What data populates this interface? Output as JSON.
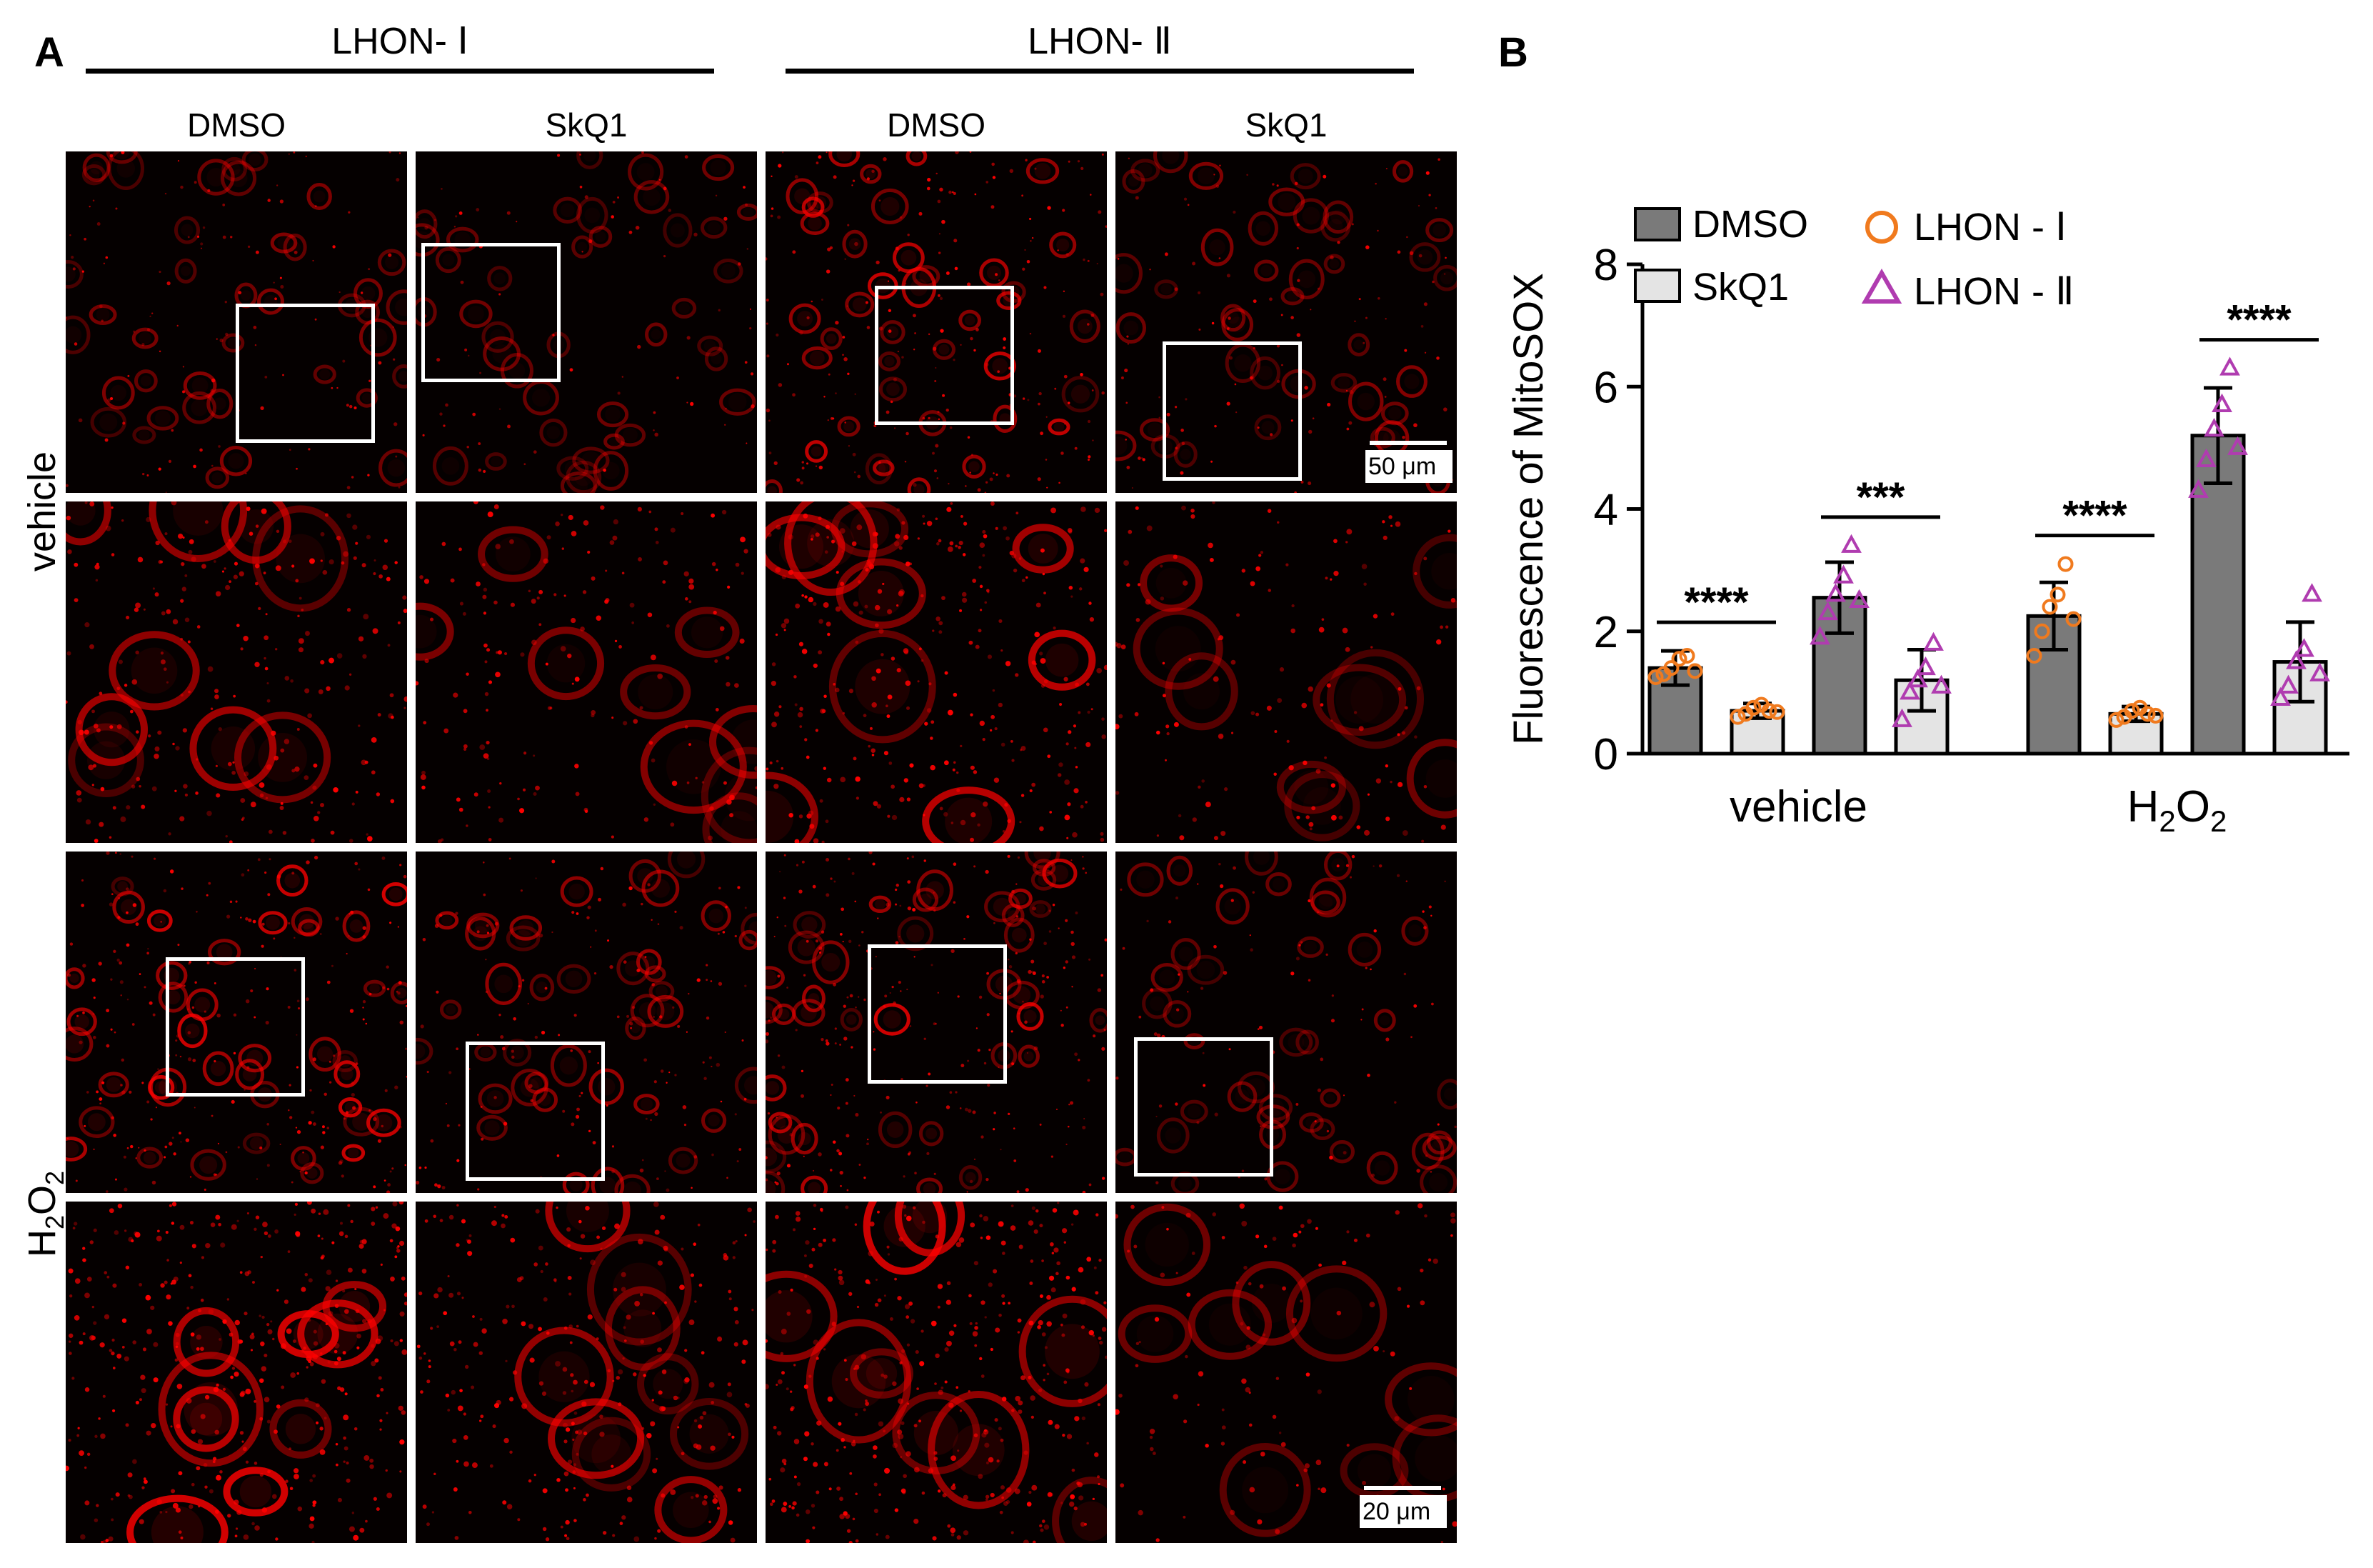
{
  "panel_a": {
    "letter": "A",
    "groups": [
      {
        "title": "LHON- Ⅰ",
        "columns": [
          "DMSO",
          "SkQ1"
        ]
      },
      {
        "title": "LHON- Ⅱ",
        "columns": [
          "DMSO",
          "SkQ1"
        ]
      }
    ],
    "rows": [
      {
        "label": "vehicle"
      },
      {
        "label_main": "H",
        "label_sub": "2",
        "label_tail": "O",
        "label_sub2": "2"
      }
    ],
    "scale_bars": {
      "overview": "50 μm",
      "zoom": "20 μm"
    },
    "image_color": "#ff0000",
    "intensity": {
      "vehicle_overview": [
        0.45,
        0.3,
        0.85,
        0.45
      ],
      "vehicle_zoom": [
        0.65,
        0.45,
        0.8,
        0.35
      ],
      "h2o2_overview": [
        0.95,
        0.6,
        0.95,
        0.35
      ],
      "h2o2_zoom": [
        1.0,
        0.7,
        0.95,
        0.3
      ]
    }
  },
  "panel_b": {
    "letter": "B",
    "chart_data": {
      "type": "bar",
      "ylabel": "Fluorescence of MitoSOX",
      "ylim": [
        0,
        8
      ],
      "yticks": [
        0,
        2,
        4,
        6,
        8
      ],
      "xcategories": [
        {
          "label": "vehicle"
        },
        {
          "label_main": "H",
          "label_sub": "2",
          "label_tail": "O",
          "label_sub2": "2"
        }
      ],
      "legend": {
        "bars": [
          {
            "name": "DMSO",
            "color": "#7a7a7a"
          },
          {
            "name": "SkQ1",
            "color": "#e4e4e4"
          }
        ],
        "markers": [
          {
            "name": "LHON - Ⅰ",
            "shape": "circle",
            "color": "#f07a1e"
          },
          {
            "name": "LHON - Ⅱ",
            "shape": "triangle",
            "color": "#b03cb0"
          }
        ]
      },
      "bars": [
        {
          "category": "vehicle",
          "line": "LHON - Ⅰ",
          "treatment": "DMSO",
          "mean": 1.4,
          "sd": 0.28,
          "points": [
            1.25,
            1.3,
            1.4,
            1.55,
            1.6,
            1.35
          ]
        },
        {
          "category": "vehicle",
          "line": "LHON - Ⅰ",
          "treatment": "SkQ1",
          "mean": 0.7,
          "sd": 0.12,
          "points": [
            0.6,
            0.65,
            0.75,
            0.8,
            0.7,
            0.68
          ]
        },
        {
          "category": "vehicle",
          "line": "LHON - Ⅱ",
          "treatment": "DMSO",
          "mean": 2.55,
          "sd": 0.58,
          "points": [
            1.9,
            2.3,
            2.6,
            2.9,
            3.4,
            2.5
          ]
        },
        {
          "category": "vehicle",
          "line": "LHON - Ⅱ",
          "treatment": "SkQ1",
          "mean": 1.2,
          "sd": 0.5,
          "points": [
            0.55,
            1.0,
            1.2,
            1.4,
            1.8,
            1.1
          ]
        },
        {
          "category": "H2O2",
          "line": "LHON - Ⅰ",
          "treatment": "DMSO",
          "mean": 2.25,
          "sd": 0.55,
          "points": [
            1.6,
            2.0,
            2.4,
            2.6,
            3.1,
            2.2
          ]
        },
        {
          "category": "H2O2",
          "line": "LHON - Ⅰ",
          "treatment": "SkQ1",
          "mean": 0.65,
          "sd": 0.12,
          "points": [
            0.55,
            0.6,
            0.7,
            0.75,
            0.65,
            0.62
          ]
        },
        {
          "category": "H2O2",
          "line": "LHON - Ⅱ",
          "treatment": "DMSO",
          "mean": 5.2,
          "sd": 0.78,
          "points": [
            4.3,
            4.8,
            5.3,
            5.7,
            6.3,
            5.0
          ]
        },
        {
          "category": "H2O2",
          "line": "LHON - Ⅱ",
          "treatment": "SkQ1",
          "mean": 1.5,
          "sd": 0.65,
          "points": [
            0.9,
            1.1,
            1.5,
            1.7,
            2.6,
            1.3
          ]
        }
      ],
      "significance": [
        {
          "from": 0,
          "to": 1,
          "label": "****"
        },
        {
          "from": 2,
          "to": 3,
          "label": "***"
        },
        {
          "from": 4,
          "to": 5,
          "label": "****"
        },
        {
          "from": 6,
          "to": 7,
          "label": "****"
        }
      ]
    }
  }
}
